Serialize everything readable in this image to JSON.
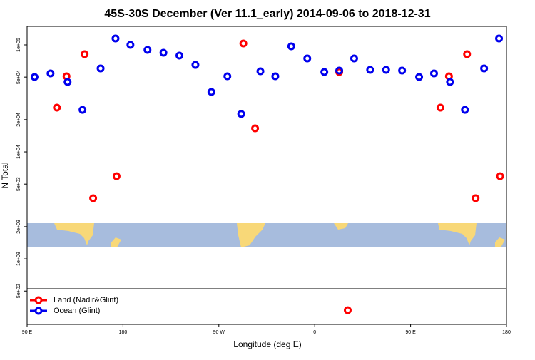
{
  "chart_data": {
    "type": "scatter",
    "title": "45S-30S December (Ver 11.1_early)   2014-09-06 to 2018-12-31",
    "x_label": "Longitude (deg E)",
    "y_label": "N Total",
    "log_y": true,
    "legend": "bottom left",
    "xlim": [
      90,
      540
    ],
    "ylim": [
      244,
      149000
    ],
    "xticks": [
      {
        "value": 90,
        "label": "90 E"
      },
      180,
      {
        "value": 270,
        "label": "90 W"
      },
      {
        "value": 360,
        "label": "0"
      },
      {
        "value": 450,
        "label": "90 E"
      },
      {
        "value": 540,
        "label": "180"
      }
    ],
    "yticks": [
      {
        "value": 100000,
        "label": "1e+05"
      },
      {
        "value": 50000,
        "label": "5e+04"
      },
      {
        "value": 20000,
        "label": "2e+04"
      },
      {
        "value": 10000,
        "label": "1e+04"
      },
      {
        "value": 5000,
        "label": "5e+03"
      },
      {
        "value": 2000,
        "label": "2e+03"
      },
      {
        "value": 1000,
        "label": "1e+03"
      },
      {
        "value": 500,
        "label": "5e+02"
      }
    ],
    "series": [
      {
        "name": "Land (Nadir&Glint)",
        "color": "#ff0000",
        "x": [
          118,
          127,
          144,
          152,
          174,
          293,
          304,
          383,
          391,
          478,
          486,
          503,
          511,
          534
        ],
        "values": [
          25900,
          50900,
          81900,
          3690,
          5930,
          103100,
          16600,
          55800,
          331,
          25900,
          50900,
          81900,
          3690,
          5930
        ]
      },
      {
        "name": "Ocean (Glint)",
        "color": "#0000ee",
        "x": [
          97,
          112,
          128,
          142,
          159,
          173,
          187,
          203,
          218,
          233,
          248,
          263,
          278,
          291,
          309,
          323,
          338,
          353,
          369,
          383,
          397,
          412,
          427,
          442,
          458,
          472,
          487,
          501,
          519,
          533
        ],
        "values": [
          50100,
          54100,
          45000,
          24700,
          60300,
          114800,
          100000,
          89800,
          84500,
          79400,
          65000,
          36300,
          50900,
          22600,
          56700,
          50900,
          97000,
          74700,
          55800,
          57500,
          74700,
          58400,
          58400,
          57500,
          50100,
          54100,
          45000,
          24700,
          60300,
          114800
        ]
      }
    ]
  }
}
